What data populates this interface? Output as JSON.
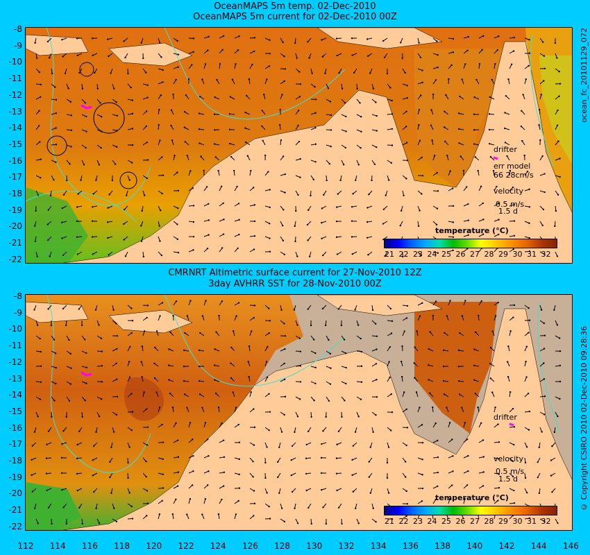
{
  "top_panel": {
    "title_line1": "OceanMAPS 5m temp. 02-Dec-2010",
    "title_line2": "OceanMAPS 5m current for 02-Dec-2010 00Z",
    "side_label": "ocean_fc_20101129_072",
    "drifter_label": "drifter",
    "err_model_label": "err model",
    "err_model_value": "66 28cm/s",
    "velocity_label": "velocity",
    "velocity_scale": "0.5 m/s",
    "velocity_time": "1.5 d",
    "legend_title": "temperature (°C)"
  },
  "bottom_panel": {
    "title_line1": "CMRNRT Altimetric surface current for 27-Nov-2010 12Z",
    "title_line2": "3day AVHRR SST for 28-Nov-2010 00Z",
    "side_label": "© Copyright CSIRO 2010   02-Dec-2010 09:28:36",
    "drifter_label": "drifter",
    "velocity_label": "velocity",
    "velocity_scale": "0.5 m/s",
    "velocity_time": "1.5 d",
    "legend_title": "temperature (°C)"
  },
  "colorbar_ticks": [
    "21",
    "22",
    "23",
    "24",
    "25",
    "26",
    "27",
    "28",
    "29",
    "30",
    "31",
    "32"
  ],
  "y_axis_labels": [
    "-8",
    "-9",
    "-10",
    "-11",
    "-12",
    "-13",
    "-14",
    "-15",
    "-16",
    "-17",
    "-18",
    "-19",
    "-20",
    "-21",
    "-22"
  ],
  "x_axis_labels": [
    "112",
    "114",
    "116",
    "118",
    "120",
    "122",
    "124",
    "126",
    "128",
    "130",
    "132",
    "134",
    "136",
    "138",
    "140",
    "142",
    "144",
    "146"
  ],
  "colors": {
    "background": "#00ccff",
    "land": "#ffcc99",
    "warm_sea": "#dd6611",
    "drifter": "#ff00ff"
  }
}
